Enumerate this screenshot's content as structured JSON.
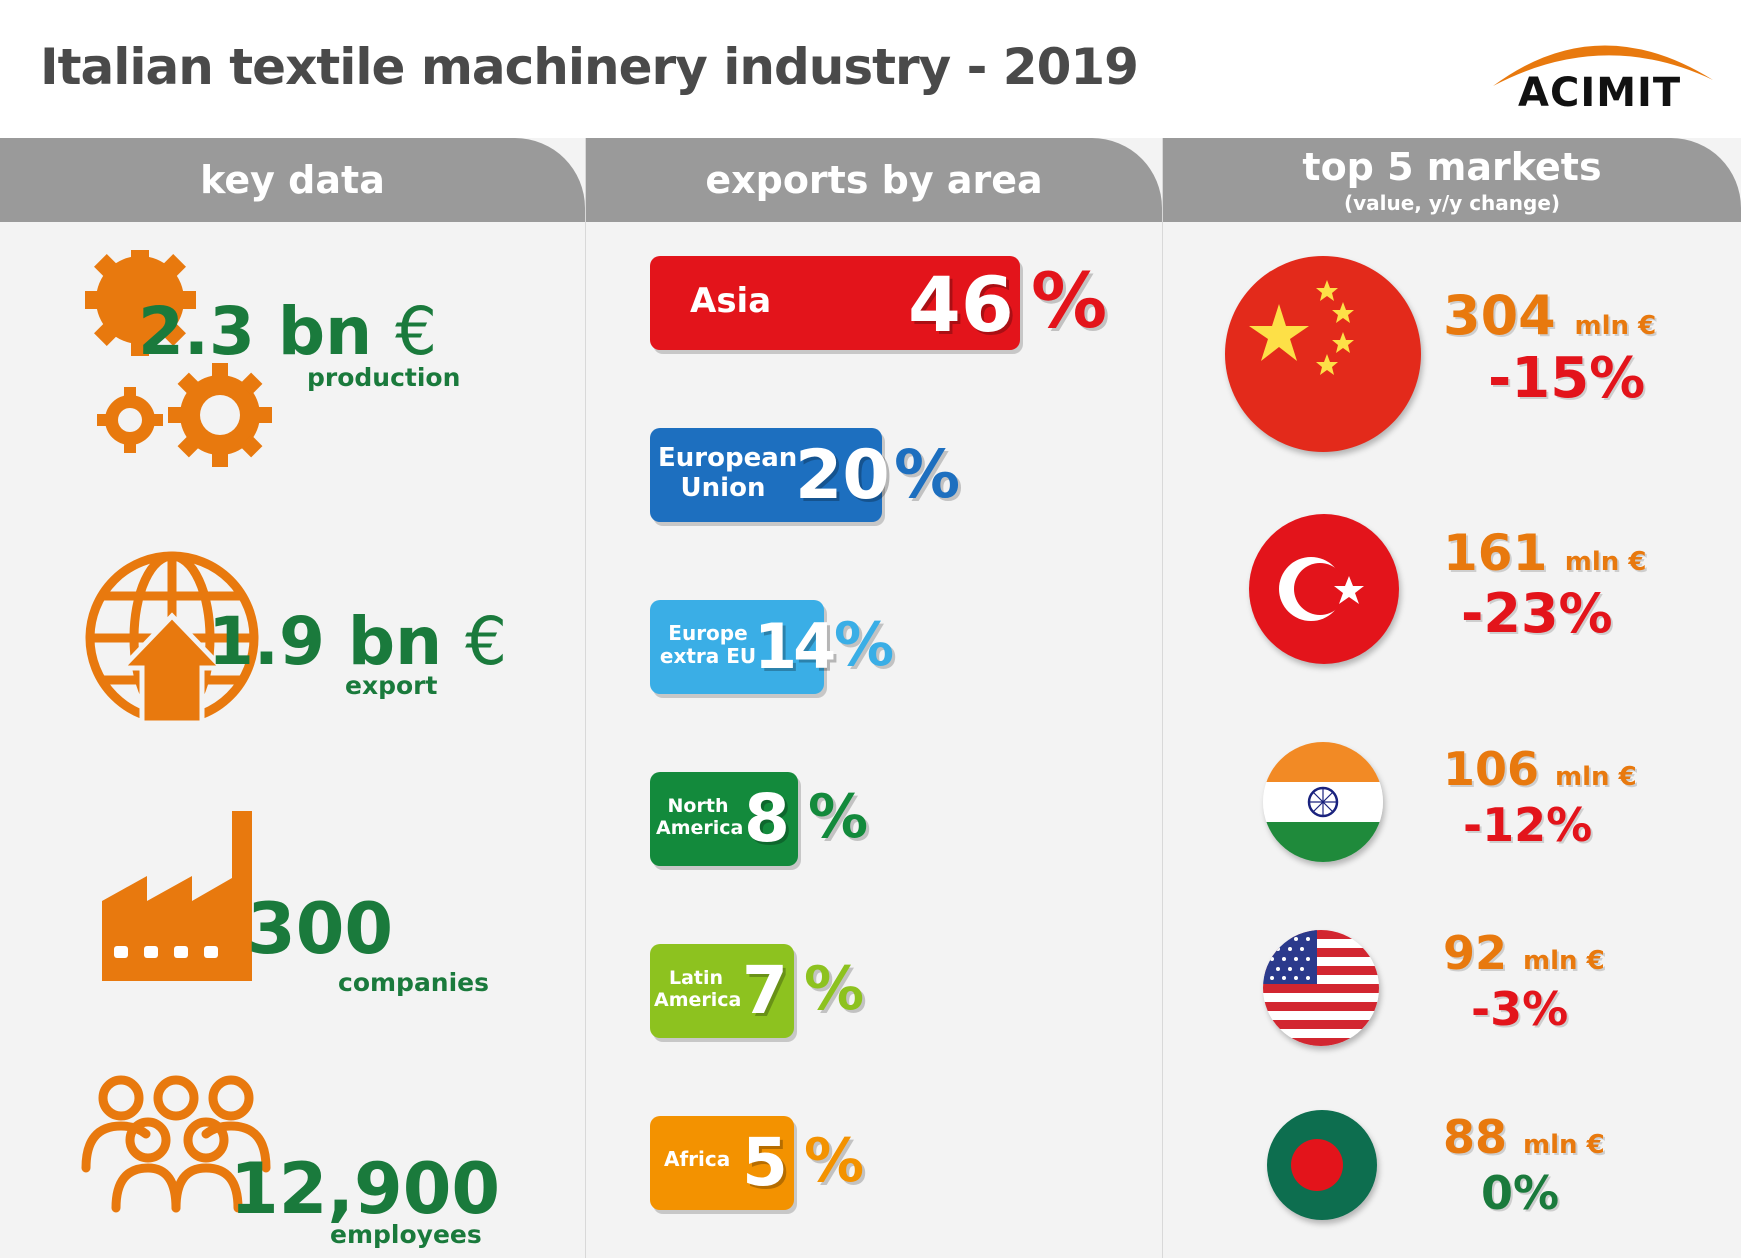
{
  "title": "Italian textile machinery industry - 2019",
  "logo": {
    "text": "ACIMIT",
    "accent": "#e8790e"
  },
  "columns": {
    "key_data": {
      "header": "key data"
    },
    "exports": {
      "header": "exports by area"
    },
    "markets": {
      "header": "top 5 markets",
      "subheader": "(value, y/y change)"
    }
  },
  "key_data": [
    {
      "value": "2.3 bn",
      "unit": "€",
      "label": "production",
      "icon": "gears-icon"
    },
    {
      "value": "1.9 bn",
      "unit": "€",
      "label": "export",
      "icon": "globe-export-icon"
    },
    {
      "value": "300",
      "unit": "",
      "label": "companies",
      "icon": "factory-icon"
    },
    {
      "value": "12,900",
      "unit": "",
      "label": "employees",
      "icon": "people-icon"
    }
  ],
  "exports": [
    {
      "area": "Asia",
      "value": "46",
      "pct": "%",
      "share": 46,
      "color": "#e3141b",
      "pct_color": "#e3141b"
    },
    {
      "area": "European Union",
      "area_l1": "European",
      "area_l2": "Union",
      "value": "20",
      "pct": "%",
      "share": 20,
      "color": "#1d6fbf",
      "pct_color": "#1d6fbf"
    },
    {
      "area": "Europe extra EU",
      "area_l1": "Europe",
      "area_l2": "extra EU",
      "value": "14",
      "pct": "%",
      "share": 14,
      "color": "#3aaee6",
      "pct_color": "#3aaee6"
    },
    {
      "area": "North America",
      "area_l1": "North",
      "area_l2": "America",
      "value": "8",
      "pct": "%",
      "share": 8,
      "color": "#138a3c",
      "pct_color": "#138a3c"
    },
    {
      "area": "Latin America",
      "area_l1": "Latin",
      "area_l2": "America",
      "value": "7",
      "pct": "%",
      "share": 7,
      "color": "#8dc21f",
      "pct_color": "#8dc21f"
    },
    {
      "area": "Africa",
      "value": "5",
      "pct": "%",
      "share": 5,
      "color": "#f39200",
      "pct_color": "#f39200"
    }
  ],
  "markets": [
    {
      "country_flag": "china-flag-icon",
      "value": "304",
      "unit": "mln €",
      "change": "-15%",
      "change_color": "#e3141b"
    },
    {
      "country_flag": "turkey-flag-icon",
      "value": "161",
      "unit": "mln €",
      "change": "-23%",
      "change_color": "#e3141b"
    },
    {
      "country_flag": "india-flag-icon",
      "value": "106",
      "unit": "mln €",
      "change": "-12%",
      "change_color": "#e3141b"
    },
    {
      "country_flag": "usa-flag-icon",
      "value": "92",
      "unit": "mln €",
      "change": "-3%",
      "change_color": "#e3141b"
    },
    {
      "country_flag": "bangladesh-flag-icon",
      "value": "88",
      "unit": "mln €",
      "change": "0%",
      "change_color": "#1a7a3c"
    }
  ],
  "colors": {
    "orange": "#e8790e",
    "green": "#1a7a3c",
    "header_gray": "#9a9a9a"
  }
}
